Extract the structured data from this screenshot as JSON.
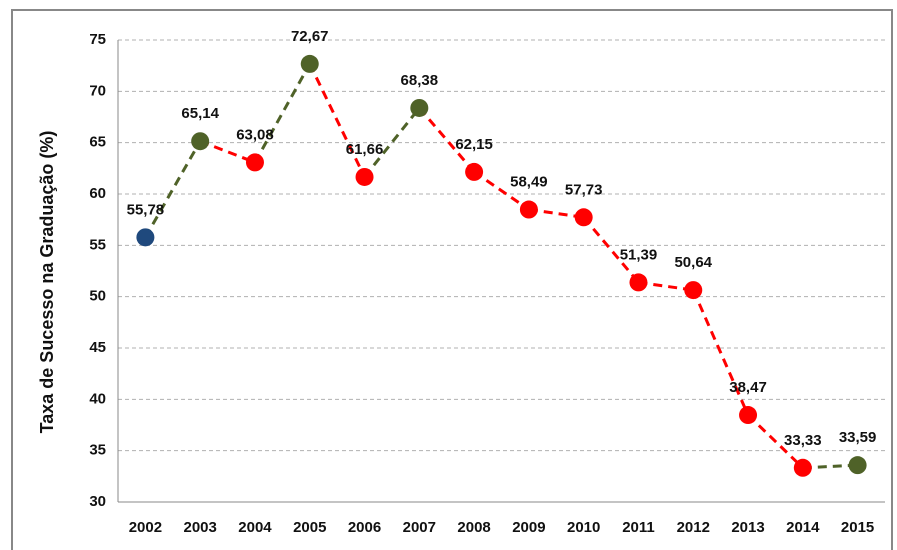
{
  "chart_data": {
    "type": "line",
    "y_label": "Taxa de Sucesso na Graduação (%)",
    "categories": [
      "2002",
      "2003",
      "2004",
      "2005",
      "2006",
      "2007",
      "2008",
      "2009",
      "2010",
      "2011",
      "2012",
      "2013",
      "2014",
      "2015"
    ],
    "series": [
      {
        "values": [
          55.78,
          65.14,
          63.08,
          72.67,
          61.66,
          68.38,
          62.15,
          58.49,
          57.73,
          51.39,
          50.64,
          38.47,
          33.33,
          33.59
        ],
        "value_labels": [
          "55,78",
          "65,14",
          "63,08",
          "72,67",
          "61,66",
          "68,38",
          "62,15",
          "58,49",
          "57,73",
          "51,39",
          "50,64",
          "38,47",
          "33,33",
          "33,59"
        ],
        "colors": [
          "#1f497d",
          "#4f6228",
          "#ff0000",
          "#4f6228",
          "#ff0000",
          "#4f6228",
          "#ff0000",
          "#ff0000",
          "#ff0000",
          "#ff0000",
          "#ff0000",
          "#ff0000",
          "#ff0000",
          "#4f6228"
        ]
      }
    ],
    "ylim": [
      30,
      75
    ],
    "yticks": [
      30,
      35,
      40,
      45,
      50,
      55,
      60,
      65,
      70,
      75
    ],
    "grid": true
  }
}
